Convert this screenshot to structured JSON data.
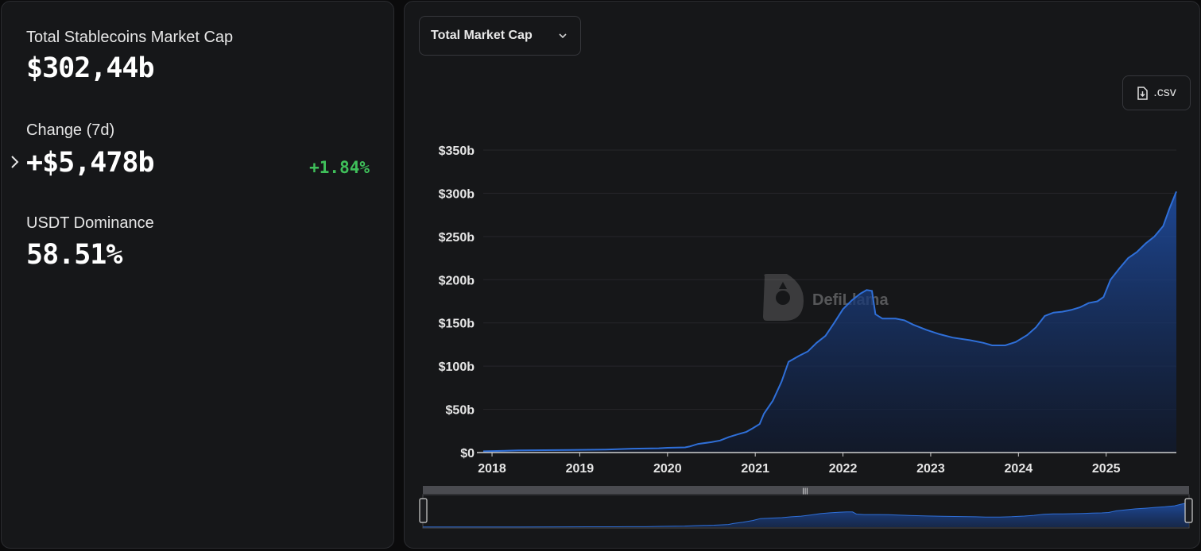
{
  "stats": {
    "total_label": "Total Stablecoins Market Cap",
    "total_value": "$302,44b",
    "change_label": "Change (7d)",
    "change_value": "+$5,478b",
    "change_pct": "+1.84%",
    "dominance_label": "USDT Dominance",
    "dominance_value": "58.51%"
  },
  "toolbar": {
    "dropdown_label": "Total Market Cap",
    "csv_label": ".csv"
  },
  "watermark": "DefiLlama",
  "colors": {
    "line": "#2f6fd8",
    "positive": "#3fbf5a",
    "panel": "#161719"
  },
  "chart_data": {
    "type": "area",
    "title": "",
    "xlabel": "",
    "ylabel": "",
    "ylim": [
      0,
      350
    ],
    "y_ticks": [
      "$350b",
      "$300b",
      "$250b",
      "$200b",
      "$150b",
      "$100b",
      "$50b",
      "$0"
    ],
    "y_tick_values": [
      350,
      300,
      250,
      200,
      150,
      100,
      50,
      0
    ],
    "x_ticks": [
      "2018",
      "2019",
      "2020",
      "2021",
      "2022",
      "2023",
      "2024",
      "2025"
    ],
    "xlim": [
      2017.9,
      2025.8
    ],
    "grid": true,
    "series": [
      {
        "points": [
          [
            2017.9,
            1.5
          ],
          [
            2018.3,
            2.5
          ],
          [
            2018.6,
            2.8
          ],
          [
            2018.9,
            3
          ],
          [
            2019.3,
            3.5
          ],
          [
            2019.6,
            4.5
          ],
          [
            2019.9,
            5
          ],
          [
            2020.0,
            5.5
          ],
          [
            2020.2,
            6
          ],
          [
            2020.25,
            7
          ],
          [
            2020.35,
            10
          ],
          [
            2020.5,
            12
          ],
          [
            2020.6,
            14
          ],
          [
            2020.7,
            18
          ],
          [
            2020.8,
            21
          ],
          [
            2020.9,
            24
          ],
          [
            2020.97,
            28
          ],
          [
            2021.05,
            33
          ],
          [
            2021.1,
            45
          ],
          [
            2021.2,
            60
          ],
          [
            2021.3,
            82
          ],
          [
            2021.38,
            105
          ],
          [
            2021.5,
            112
          ],
          [
            2021.6,
            117
          ],
          [
            2021.7,
            127
          ],
          [
            2021.8,
            135
          ],
          [
            2021.9,
            150
          ],
          [
            2022.0,
            166
          ],
          [
            2022.1,
            176
          ],
          [
            2022.2,
            184
          ],
          [
            2022.27,
            188
          ],
          [
            2022.33,
            187
          ],
          [
            2022.37,
            160
          ],
          [
            2022.45,
            155
          ],
          [
            2022.6,
            155
          ],
          [
            2022.7,
            153
          ],
          [
            2022.8,
            148
          ],
          [
            2022.95,
            142
          ],
          [
            2023.1,
            137
          ],
          [
            2023.25,
            133
          ],
          [
            2023.45,
            130
          ],
          [
            2023.6,
            127
          ],
          [
            2023.7,
            124
          ],
          [
            2023.85,
            124
          ],
          [
            2023.97,
            128
          ],
          [
            2024.1,
            136
          ],
          [
            2024.2,
            145
          ],
          [
            2024.3,
            158
          ],
          [
            2024.4,
            162
          ],
          [
            2024.5,
            163
          ],
          [
            2024.6,
            165
          ],
          [
            2024.7,
            168
          ],
          [
            2024.8,
            173
          ],
          [
            2024.9,
            175
          ],
          [
            2024.97,
            180
          ],
          [
            2025.05,
            200
          ],
          [
            2025.15,
            213
          ],
          [
            2025.25,
            225
          ],
          [
            2025.35,
            232
          ],
          [
            2025.45,
            242
          ],
          [
            2025.55,
            250
          ],
          [
            2025.65,
            262
          ],
          [
            2025.72,
            282
          ],
          [
            2025.8,
            302
          ]
        ]
      }
    ]
  }
}
